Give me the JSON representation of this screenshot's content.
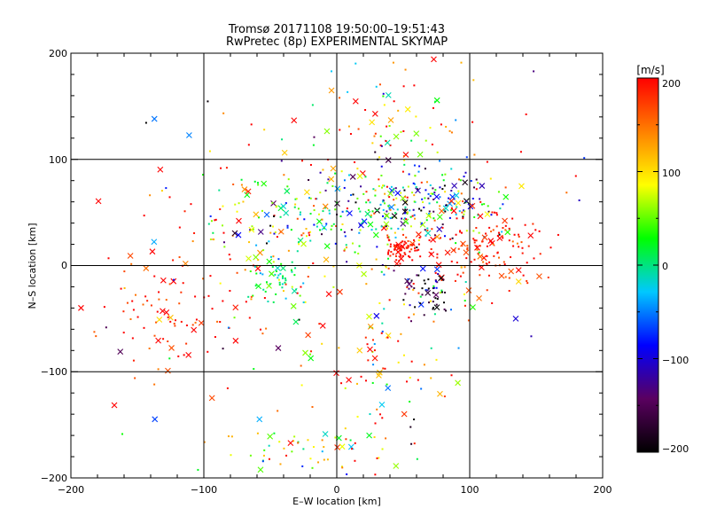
{
  "chart_data": {
    "type": "scatter",
    "title": "Tromsø 20171108 19:50:00–19:51:43",
    "subtitle": "RwPretec (8p) EXPERIMENTAL SKYMAP",
    "xlabel": "E–W location [km]",
    "ylabel": "N–S location [km]",
    "xlim": [
      -200,
      200
    ],
    "ylim": [
      -200,
      200
    ],
    "xticks": [
      "−200",
      "−100",
      "0",
      "100",
      "200"
    ],
    "yticks": [
      "200",
      "100",
      "0",
      "−100",
      "−200"
    ],
    "grid": true,
    "colorbar": {
      "label": "[m/s]",
      "range": [
        -200,
        200
      ],
      "ticks": [
        "200",
        "100",
        "0",
        "−100",
        "−200"
      ],
      "colors": [
        "#000000",
        "#5a0060",
        "#0000ff",
        "#00c8ff",
        "#00ff00",
        "#ffff00",
        "#ff8000",
        "#ff0000"
      ]
    },
    "clusters": [
      {
        "x": 75,
        "y": 60,
        "sx": 25,
        "sy": 18,
        "n": 170,
        "vel": -40,
        "vspread": 120
      },
      {
        "x": 5,
        "y": 50,
        "sx": 38,
        "sy": 22,
        "n": 190,
        "vel": 20,
        "vspread": 90
      },
      {
        "x": 110,
        "y": 15,
        "sx": 25,
        "sy": 22,
        "n": 150,
        "vel": 190,
        "vspread": 25
      },
      {
        "x": 48,
        "y": 15,
        "sx": 6,
        "sy": 5,
        "n": 70,
        "vel": 195,
        "vspread": 15
      },
      {
        "x": 72,
        "y": -25,
        "sx": 12,
        "sy": 12,
        "n": 60,
        "vel": -150,
        "vspread": 90
      },
      {
        "x": -125,
        "y": -50,
        "sx": 30,
        "sy": 30,
        "n": 90,
        "vel": 190,
        "vspread": 30
      },
      {
        "x": -60,
        "y": 40,
        "sx": 30,
        "sy": 35,
        "n": 80,
        "vel": 120,
        "vspread": 90
      },
      {
        "x": -45,
        "y": -10,
        "sx": 10,
        "sy": 12,
        "n": 50,
        "vel": 10,
        "vspread": 30
      },
      {
        "x": 45,
        "y": 135,
        "sx": 35,
        "sy": 40,
        "n": 90,
        "vel": 100,
        "vspread": 120
      },
      {
        "x": 30,
        "y": -85,
        "sx": 35,
        "sy": 40,
        "n": 80,
        "vel": 140,
        "vspread": 90
      },
      {
        "x": -20,
        "y": -180,
        "sx": 40,
        "sy": 15,
        "n": 70,
        "vel": 90,
        "vspread": 80
      },
      {
        "x": 0,
        "y": 0,
        "sx": 100,
        "sy": 100,
        "n": 120,
        "vel": 50,
        "vspread": 180
      }
    ]
  }
}
